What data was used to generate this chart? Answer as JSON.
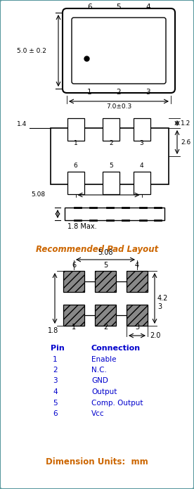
{
  "bg_color": "#eff4f4",
  "border_color": "#5b9aa0",
  "title_color": "#cc6600",
  "text_color": "#0000cc",
  "pad_color": "#888888",
  "pin_table": {
    "header": [
      "Pin",
      "Connection"
    ],
    "rows": [
      [
        "1",
        "Enable"
      ],
      [
        "2",
        "N.C."
      ],
      [
        "3",
        "GND"
      ],
      [
        "4",
        "Output"
      ],
      [
        "5",
        "Comp. Output"
      ],
      [
        "6",
        "Vcc"
      ]
    ]
  },
  "footer_text": "Dimension Units:  mm",
  "pad_layout_title": "Recommended Pad Layout"
}
